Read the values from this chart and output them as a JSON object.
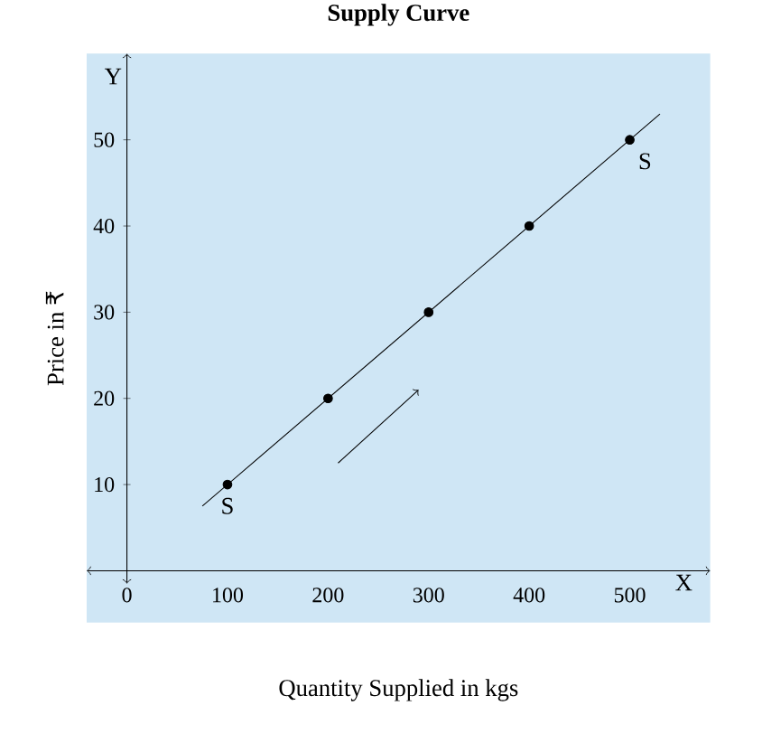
{
  "chart_data": {
    "type": "scatter",
    "title": "Supply Curve",
    "xlabel": "Quantity Supplied in kgs",
    "ylabel": "Price in ₹",
    "xlim": [
      -40,
      580
    ],
    "ylim": [
      -6,
      60
    ],
    "xticks": [
      0,
      100,
      200,
      300,
      400,
      500
    ],
    "yticks": [
      10,
      20,
      30,
      40,
      50
    ],
    "series": [
      {
        "type": "line",
        "x": [
          75,
          530
        ],
        "values": [
          7.5,
          53
        ],
        "color": "#000000",
        "marker": "none"
      },
      {
        "x": [
          100,
          200,
          300,
          400,
          500
        ],
        "values": [
          10,
          20,
          30,
          40,
          50
        ],
        "color": "#000000",
        "marker": "circle"
      }
    ],
    "annotations": [
      {
        "text": "S",
        "x": 100,
        "y": 10
      },
      {
        "text": "S",
        "x": 500,
        "y": 50
      },
      "X",
      "Y"
    ]
  }
}
